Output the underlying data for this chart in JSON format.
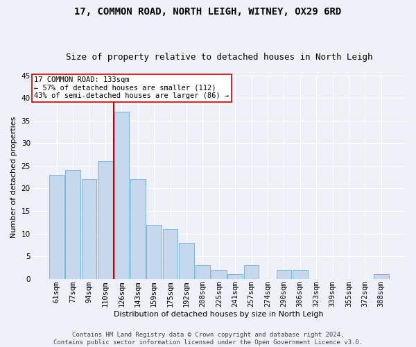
{
  "title1": "17, COMMON ROAD, NORTH LEIGH, WITNEY, OX29 6RD",
  "title2": "Size of property relative to detached houses in North Leigh",
  "xlabel": "Distribution of detached houses by size in North Leigh",
  "ylabel": "Number of detached properties",
  "bar_labels": [
    "61sqm",
    "77sqm",
    "94sqm",
    "110sqm",
    "126sqm",
    "143sqm",
    "159sqm",
    "175sqm",
    "192sqm",
    "208sqm",
    "225sqm",
    "241sqm",
    "257sqm",
    "274sqm",
    "290sqm",
    "306sqm",
    "323sqm",
    "339sqm",
    "355sqm",
    "372sqm",
    "388sqm"
  ],
  "bar_values": [
    23,
    24,
    22,
    26,
    37,
    22,
    12,
    11,
    8,
    3,
    2,
    1,
    3,
    0,
    2,
    2,
    0,
    0,
    0,
    0,
    1
  ],
  "bar_color": "#c5d8ed",
  "bar_edge_color": "#6aaed6",
  "vline_color": "#cc0000",
  "vline_x_index": 4,
  "annotation_text": "17 COMMON ROAD: 133sqm\n← 57% of detached houses are smaller (112)\n43% of semi-detached houses are larger (86) →",
  "annotation_box_color": "#ffffff",
  "annotation_box_edge": "#cc0000",
  "ylim": [
    0,
    45
  ],
  "yticks": [
    0,
    5,
    10,
    15,
    20,
    25,
    30,
    35,
    40,
    45
  ],
  "footer_line1": "Contains HM Land Registry data © Crown copyright and database right 2024.",
  "footer_line2": "Contains public sector information licensed under the Open Government Licence v3.0.",
  "bg_color": "#eef2f8",
  "grid_color": "#ffffff",
  "title1_fontsize": 10,
  "title2_fontsize": 9,
  "axis_label_fontsize": 8,
  "tick_fontsize": 7.5,
  "annotation_fontsize": 7.5,
  "footer_fontsize": 6.5,
  "bar_width": 0.92
}
